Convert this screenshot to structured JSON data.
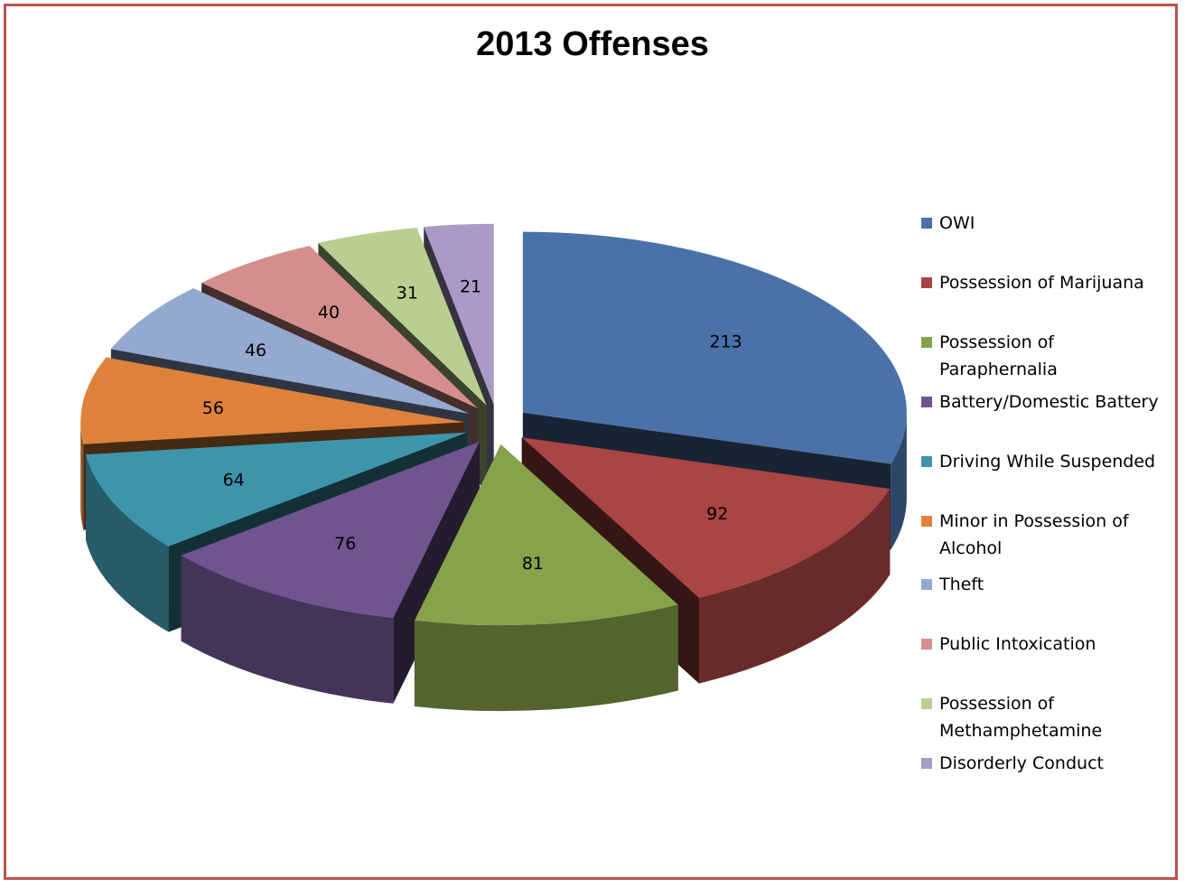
{
  "chart_data": {
    "type": "pie",
    "title": "2013 Offenses",
    "categories": [
      "OWI",
      "Possession of Marijuana",
      "Possession of Paraphernalia",
      "Battery/Domestic Battery",
      "Driving While Suspended",
      "Minor in Possession of Alcohol",
      "Theft",
      "Public Intoxication",
      "Possession of Methamphetamine",
      "Disorderly Conduct"
    ],
    "values": [
      213,
      92,
      81,
      76,
      64,
      56,
      46,
      40,
      31,
      21
    ],
    "colors": [
      "#4a72a8",
      "#a94543",
      "#86a24a",
      "#6f5490",
      "#3d95ab",
      "#de823b",
      "#93a9d0",
      "#d48f8d",
      "#b8cf8f",
      "#a99bc6"
    ],
    "legend_position": "right",
    "style": "3d-exploded-pie"
  }
}
